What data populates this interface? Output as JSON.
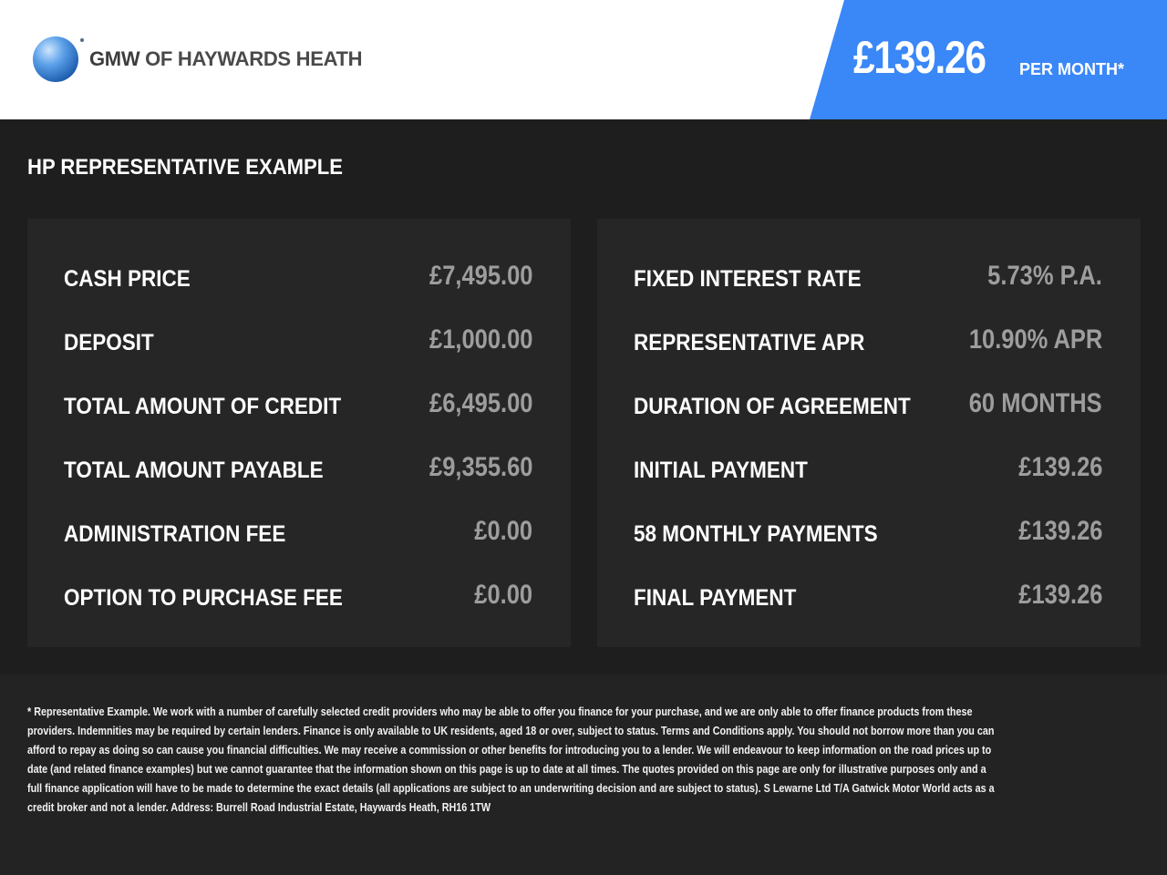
{
  "header": {
    "logo_text_bold": "GMW",
    "logo_text": " OF HAYWARDS HEATH",
    "price": "£139.26",
    "per_month": "PER MONTH*",
    "accent_color": "#3a87f7"
  },
  "section_title": "HP REPRESENTATIVE EXAMPLE",
  "left_rows": [
    {
      "label": "CASH PRICE",
      "value": "£7,495.00"
    },
    {
      "label": "DEPOSIT",
      "value": "£1,000.00"
    },
    {
      "label": "TOTAL AMOUNT OF CREDIT",
      "value": "£6,495.00"
    },
    {
      "label": "TOTAL AMOUNT PAYABLE",
      "value": "£9,355.60"
    },
    {
      "label": "ADMINISTRATION FEE",
      "value": "£0.00"
    },
    {
      "label": "OPTION TO PURCHASE FEE",
      "value": "£0.00"
    }
  ],
  "right_rows": [
    {
      "label": "FIXED INTEREST RATE",
      "value": "5.73% P.A."
    },
    {
      "label": "REPRESENTATIVE APR",
      "value": "10.90% APR"
    },
    {
      "label": "DURATION OF AGREEMENT",
      "value": "60 MONTHS"
    },
    {
      "label": "INITIAL PAYMENT",
      "value": "£139.26"
    },
    {
      "label": "58 MONTHLY PAYMENTS",
      "value": "£139.26"
    },
    {
      "label": "FINAL PAYMENT",
      "value": "£139.26"
    }
  ],
  "disclaimer_lines": [
    "* Representative Example. We work with a number of carefully selected credit providers who may be able to offer you finance for your purchase, and we are only able to offer finance products from these",
    "providers. Indemnities may be required by certain lenders. Finance is only available to UK residents, aged 18 or over, subject to status. Terms and Conditions apply. You should not borrow more than you can",
    "afford to repay as doing so can cause you financial difficulties. We may receive a commission or other benefits for introducing you to a lender. We will endeavour to keep information on the road prices up to",
    "date (and related finance examples) but we cannot guarantee that the information shown on this page is up to date at all times. The quotes provided on this page are only for illustrative purposes only and a",
    "full finance application will have to be made to determine the exact details (all applications are subject to an underwriting decision and are subject to status). S Lewarne Ltd T/A Gatwick Motor World acts as a",
    "credit broker and not a lender. Address: Burrell Road Industrial Estate, Haywards Heath, RH16 1TW"
  ]
}
